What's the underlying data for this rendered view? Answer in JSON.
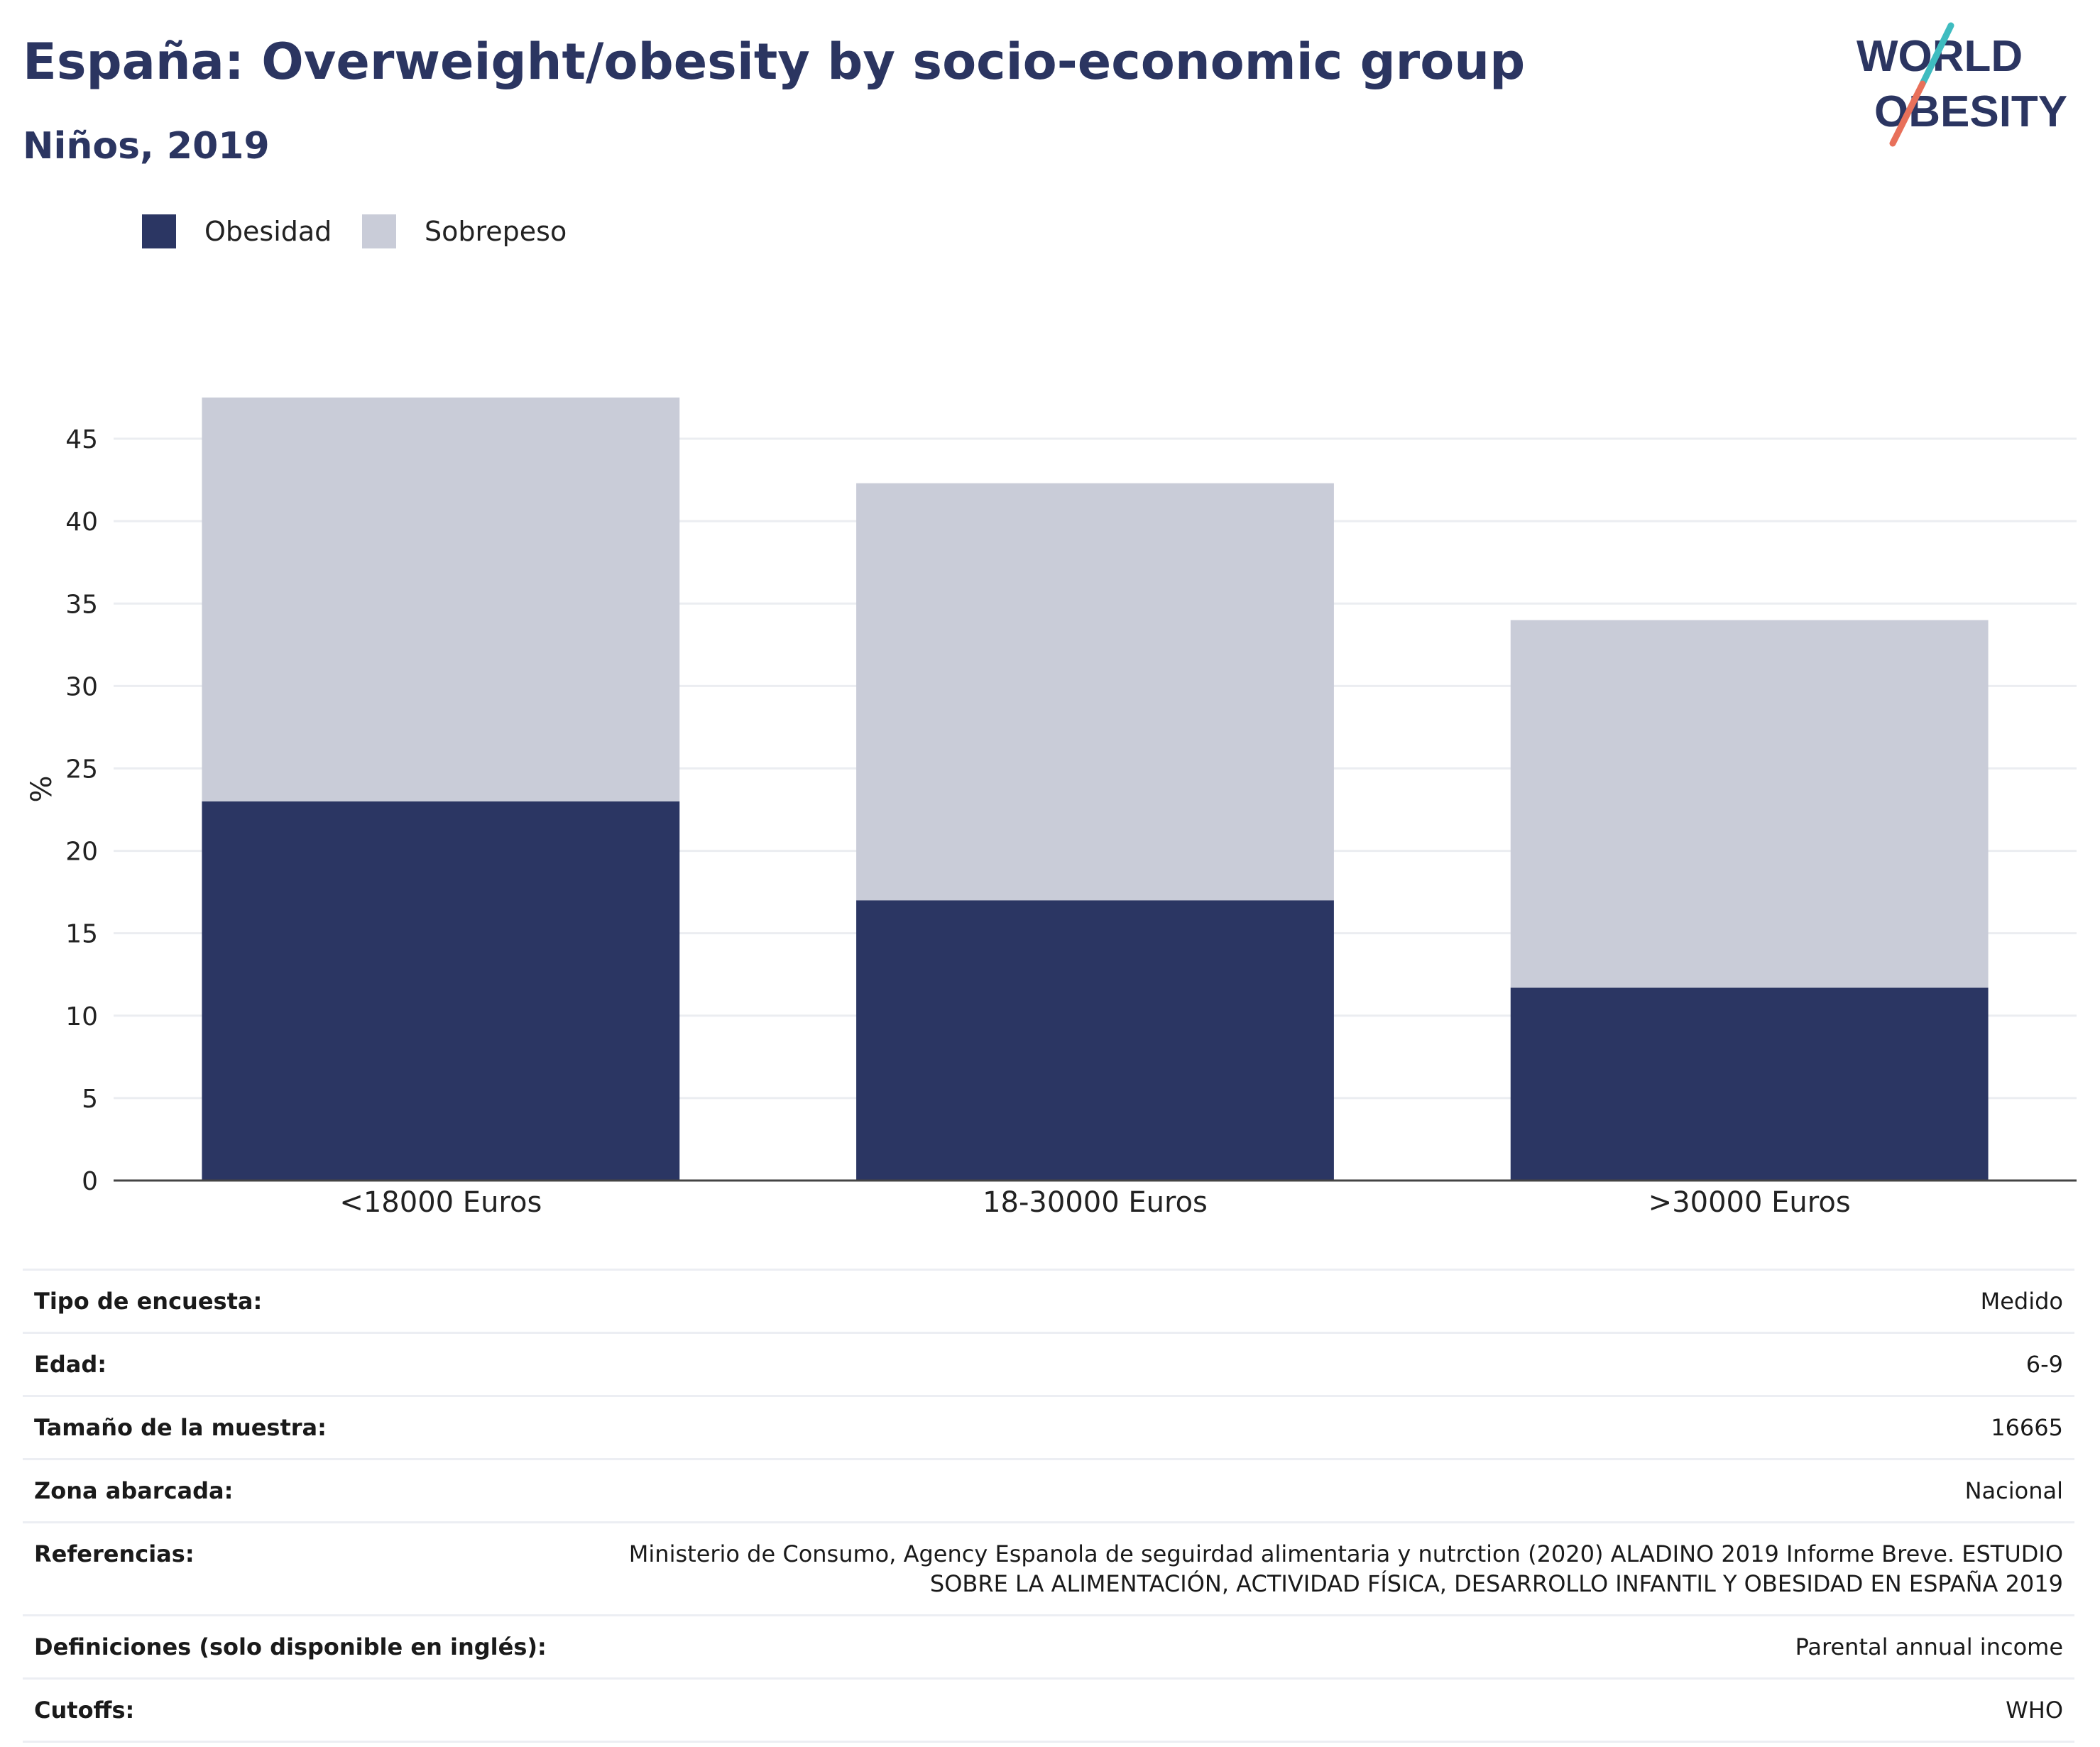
{
  "header": {
    "title": "España: Overweight/obesity by socio-economic group",
    "subtitle": "Niños, 2019"
  },
  "logo": {
    "line1": "WORLD",
    "line2": "OBESITY"
  },
  "colors": {
    "obesity": "#2b3663",
    "overweight": "#c9ccd8",
    "text": "#2b3561",
    "logo_teal": "#3fbcc0",
    "logo_coral": "#e8705a"
  },
  "chart_data": {
    "type": "bar",
    "stacked": true,
    "categories": [
      "<18000 Euros",
      "18-30000 Euros",
      ">30000 Euros"
    ],
    "series": [
      {
        "name": "Obesidad",
        "values": [
          23.0,
          17.0,
          11.7
        ]
      },
      {
        "name": "Sobrepeso",
        "values": [
          24.5,
          25.3,
          22.3
        ]
      }
    ],
    "xlabel": "",
    "ylabel": "%",
    "ylim": [
      0,
      47.5
    ],
    "yticks": [
      0,
      5,
      10,
      15,
      20,
      25,
      30,
      35,
      40,
      45
    ],
    "grid": true,
    "legend_position": "top-left"
  },
  "info": [
    {
      "label": "Tipo de encuesta:",
      "value": "Medido"
    },
    {
      "label": "Edad:",
      "value": "6-9"
    },
    {
      "label": "Tamaño de la muestra:",
      "value": "16665"
    },
    {
      "label": "Zona abarcada:",
      "value": "Nacional"
    },
    {
      "label": "Referencias:",
      "value": "Ministerio de Consumo, Agency Espanola de seguirdad alimentaria y nutrction (2020) ALADINO 2019 Informe Breve. ESTUDIO SOBRE LA ALIMENTACIÓN, ACTIVIDAD FÍSICA, DESARROLLO INFANTIL Y OBESIDAD EN ESPAÑA 2019"
    },
    {
      "label": "Definiciones (solo disponible en inglés):",
      "value": "Parental annual income"
    },
    {
      "label": "Cutoffs:",
      "value": "WHO"
    }
  ]
}
